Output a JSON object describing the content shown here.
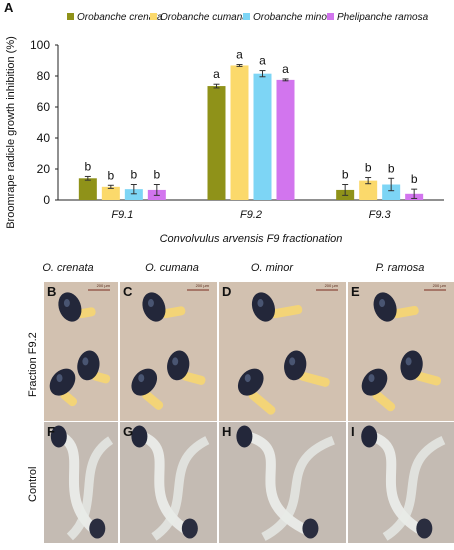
{
  "panel_a_label": "A",
  "colors": {
    "crenata": "#8f9219",
    "cumana": "#fbd96b",
    "minor": "#7dd5f5",
    "ramosa": "#d275ee"
  },
  "chart_data": {
    "type": "bar",
    "categories": [
      "F9.1",
      "F9.2",
      "F9.3"
    ],
    "series": [
      {
        "name": "Orobanche crenata",
        "values": [
          14,
          73.5,
          6.5
        ],
        "errors": [
          1.2,
          1.2,
          3.5
        ],
        "letters": [
          "b",
          "a",
          "b"
        ]
      },
      {
        "name": "Orobanche cumana",
        "values": [
          8.5,
          86.8,
          12.5
        ],
        "errors": [
          1,
          0.6,
          2
        ],
        "letters": [
          "b",
          "a",
          "b"
        ]
      },
      {
        "name": "Orobanche minor",
        "values": [
          7,
          81.5,
          10
        ],
        "errors": [
          3,
          2,
          4
        ],
        "letters": [
          "b",
          "a",
          "b"
        ]
      },
      {
        "name": "Phelipanche ramosa",
        "values": [
          6.5,
          77.5,
          4
        ],
        "errors": [
          3.5,
          0.6,
          3
        ],
        "letters": [
          "b",
          "a",
          "b"
        ]
      }
    ],
    "ylabel": "Broomrape radicle growth inhibition (%)",
    "xlabel": "Convolvulus arvensis  F9 fractionation",
    "ylim": [
      0,
      100
    ],
    "yticks": [
      0,
      20,
      40,
      60,
      80,
      100
    ],
    "legend": "top",
    "grid": false
  },
  "photos": {
    "species_headers": [
      "O. crenata",
      "O. cumana",
      "O. minor",
      "P. ramosa"
    ],
    "row_labels": [
      "Fraction F9.2",
      "Control"
    ],
    "panel_letters": [
      "B",
      "C",
      "D",
      "E",
      "F",
      "G",
      "H",
      "I"
    ],
    "scale_bar_text": "200 µm"
  }
}
